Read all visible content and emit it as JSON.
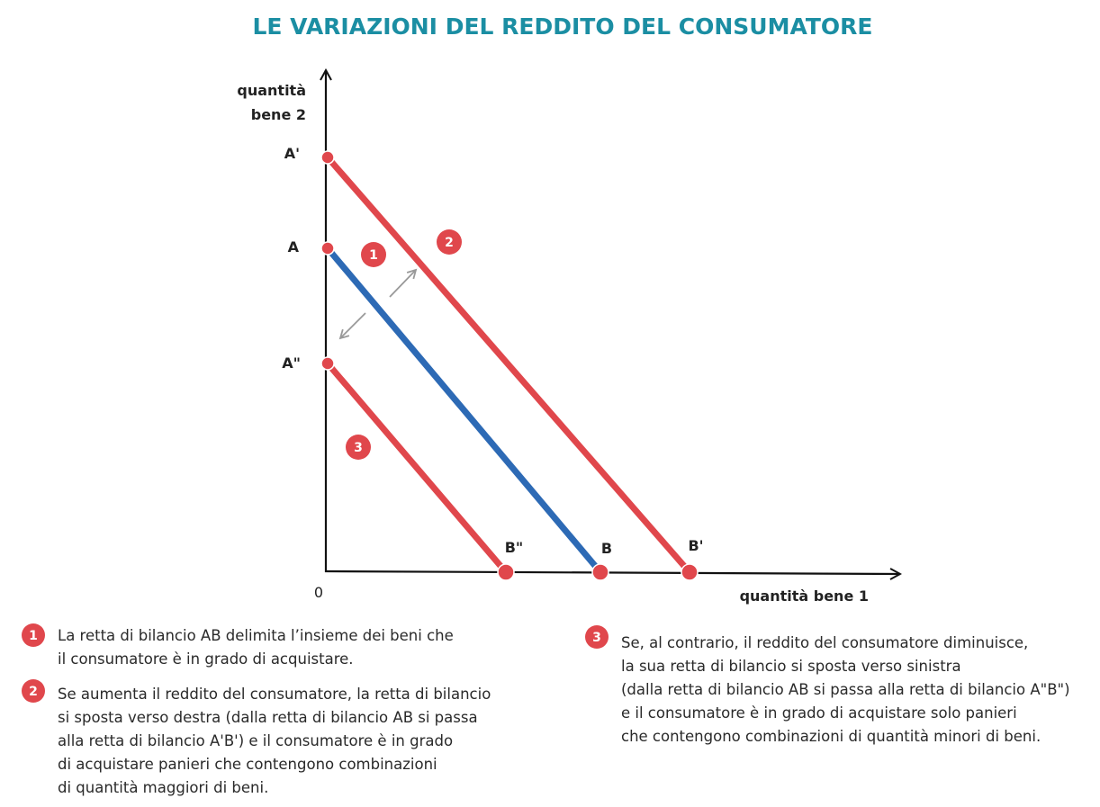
{
  "header": {
    "title": "LE VARIAZIONI DEL REDDITO DEL CONSUMATORE"
  },
  "axes": {
    "y_label": [
      "quantità",
      "bene 2"
    ],
    "x_label": "quantità bene 1",
    "origin": "0"
  },
  "points": [
    {
      "label": "A'"
    },
    {
      "label": "A"
    },
    {
      "label": "A\""
    },
    {
      "label": "B\""
    },
    {
      "label": "B"
    },
    {
      "label": "B'"
    }
  ],
  "badges": [
    "1",
    "2",
    "3"
  ],
  "notes": [
    {
      "number": "1",
      "lines": [
        "La retta di bilancio AB delimita l’insieme dei beni che",
        "il consumatore è in grado di acquistare."
      ]
    },
    {
      "number": "2",
      "lines": [
        "Se aumenta il reddito del consumatore, la retta di bilancio",
        "si sposta verso destra (dalla retta di bilancio AB si passa",
        "alla retta di bilancio A'B') e il consumatore è in grado",
        "di acquistare panieri che contengono combinazioni",
        "di quantità maggiori di beni."
      ]
    },
    {
      "number": "3",
      "lines": [
        "Se, al contrario, il reddito del consumatore diminuisce,",
        "la sua retta di bilancio si sposta verso sinistra",
        "(dalla retta di bilancio AB si passa alla retta di bilancio A\"B\")",
        "e il consumatore è in grado di acquistare solo panieri",
        "che contengono combinazioni di quantità minori di beni."
      ]
    }
  ]
}
